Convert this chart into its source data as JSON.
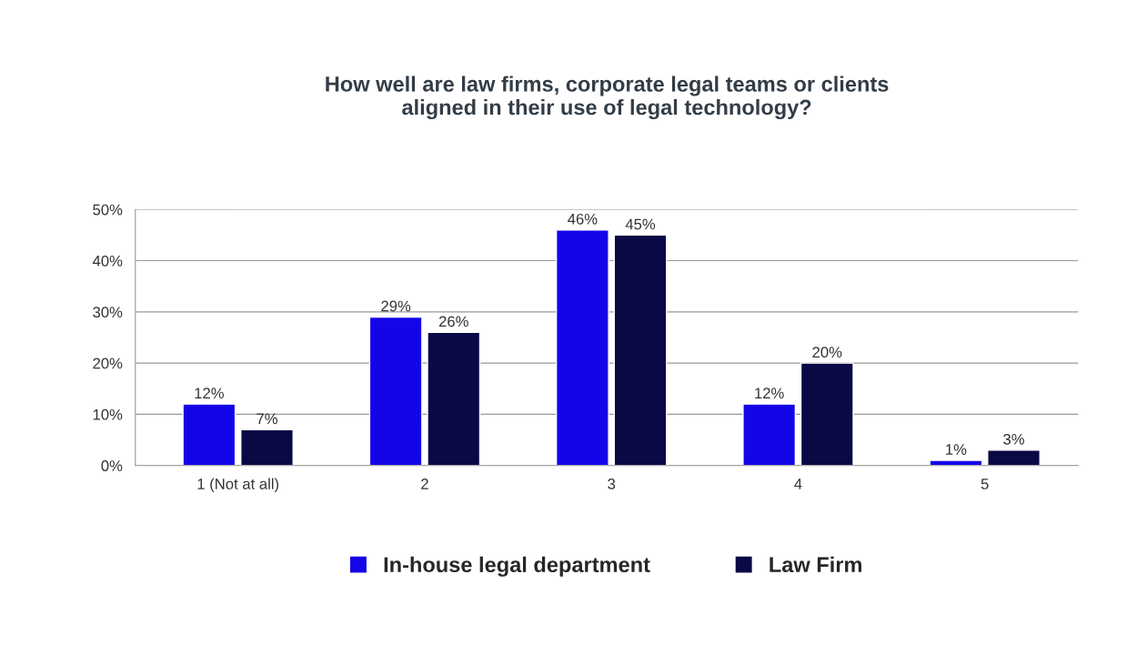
{
  "chart_data": {
    "type": "bar",
    "title": "How well are law firms, corporate legal teams or clients\naligned in their use of legal technology?",
    "categories": [
      "1 (Not at all)",
      "2",
      "3",
      "4",
      "5"
    ],
    "series": [
      {
        "name": "In-house legal department",
        "color": "#1405e8",
        "values": [
          12,
          29,
          46,
          12,
          1
        ],
        "value_labels": [
          "12%",
          "29%",
          "46%",
          "12%",
          "1%"
        ]
      },
      {
        "name": "Law Firm",
        "color": "#0a0845",
        "values": [
          7,
          26,
          45,
          20,
          3
        ],
        "value_labels": [
          "7%",
          "26%",
          "45%",
          "20%",
          "3%"
        ]
      }
    ],
    "ylim": [
      0,
      50
    ],
    "yticks": [
      {
        "value": 0,
        "label": "0%"
      },
      {
        "value": 10,
        "label": "10%"
      },
      {
        "value": 20,
        "label": "20%"
      },
      {
        "value": 30,
        "label": "30%"
      },
      {
        "value": 40,
        "label": "40%"
      },
      {
        "value": 50,
        "label": "50%"
      }
    ],
    "grid": "y",
    "legend": "bottom"
  }
}
